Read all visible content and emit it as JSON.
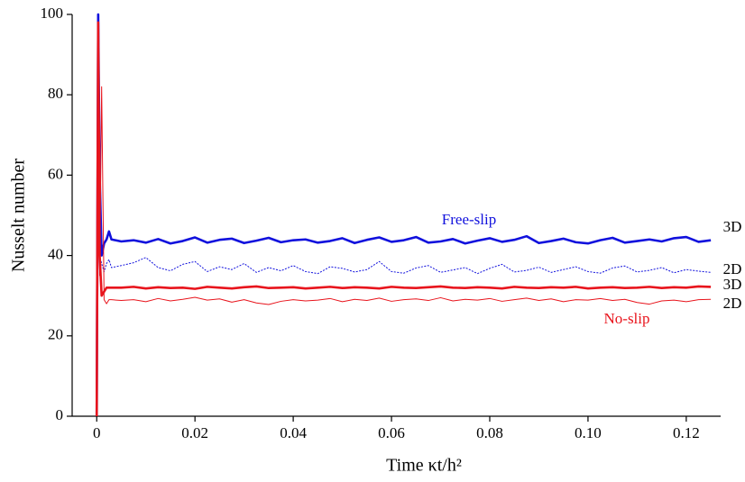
{
  "chart_data": {
    "type": "line",
    "xlabel": "Time κt/h²",
    "ylabel": "Nusselt number",
    "annotations": [
      "Free-slip",
      "No-slip",
      "3D",
      "2D",
      "3D",
      "2D"
    ],
    "xlim": [
      -0.005,
      0.127
    ],
    "ylim": [
      0,
      100
    ],
    "xticks": [
      0,
      0.02,
      0.04,
      0.06,
      0.08,
      {
        "value": 0.1,
        "label": "0.10"
      },
      0.12
    ],
    "yticks": [
      0,
      20,
      40,
      60,
      80,
      100
    ],
    "x": [
      0,
      0.0003,
      0.0006,
      0.001,
      0.0015,
      0.002,
      0.0025,
      0.003,
      0.005,
      0.0075,
      0.01,
      0.0125,
      0.015,
      0.0175,
      0.02,
      0.0225,
      0.025,
      0.0275,
      0.03,
      0.0325,
      0.035,
      0.0375,
      0.04,
      0.0425,
      0.045,
      0.0475,
      0.05,
      0.0525,
      0.055,
      0.0575,
      0.06,
      0.0625,
      0.065,
      0.0675,
      0.07,
      0.0725,
      0.075,
      0.0775,
      0.08,
      0.0825,
      0.085,
      0.0875,
      0.09,
      0.0925,
      0.095,
      0.0975,
      0.1,
      0.1025,
      0.105,
      0.1075,
      0.11,
      0.1125,
      0.115,
      0.1175,
      0.12,
      0.1225,
      0.125
    ],
    "series": [
      {
        "name": "Free-slip 3D",
        "color": "#1111dd",
        "values": [
          0,
          100,
          60,
          40,
          43,
          44,
          46,
          44,
          43.5,
          43.8,
          43.2,
          44.1,
          43.0,
          43.6,
          44.5,
          43.2,
          43.9,
          44.2,
          43.1,
          43.7,
          44.4,
          43.3,
          43.8,
          44.0,
          43.2,
          43.6,
          44.3,
          43.1,
          43.9,
          44.5,
          43.4,
          43.8,
          44.6,
          43.2,
          43.5,
          44.1,
          43.0,
          43.7,
          44.3,
          43.4,
          43.9,
          44.8,
          43.1,
          43.6,
          44.2,
          43.3,
          43.0,
          43.8,
          44.4,
          43.2,
          43.6,
          44.0,
          43.5,
          44.3,
          44.6,
          43.4,
          43.8
        ]
      },
      {
        "name": "Free-slip 2D",
        "color": "#1111dd",
        "values": [
          0,
          95,
          40,
          38,
          36,
          38,
          39,
          37,
          37.5,
          38.2,
          39.5,
          37.0,
          36.2,
          37.8,
          38.5,
          36.0,
          37.2,
          36.5,
          38.0,
          35.8,
          37.0,
          36.2,
          37.5,
          36.0,
          35.5,
          37.2,
          36.8,
          35.9,
          36.5,
          38.5,
          36.0,
          35.6,
          36.9,
          37.5,
          35.8,
          36.4,
          37.0,
          35.5,
          36.8,
          37.8,
          35.9,
          36.3,
          37.1,
          35.8,
          36.5,
          37.2,
          36.0,
          35.6,
          36.9,
          37.4,
          35.9,
          36.3,
          37.0,
          35.7,
          36.5,
          36.1,
          35.8
        ]
      },
      {
        "name": "No-slip 3D",
        "color": "#e8141c",
        "values": [
          0,
          98,
          40,
          30,
          31,
          32,
          32,
          32,
          32.0,
          32.2,
          31.8,
          32.1,
          31.9,
          32.0,
          31.7,
          32.2,
          32.0,
          31.8,
          32.1,
          32.3,
          31.9,
          32.0,
          32.1,
          31.8,
          32.0,
          32.2,
          31.9,
          32.1,
          32.0,
          31.8,
          32.2,
          32.0,
          31.9,
          32.1,
          32.3,
          32.0,
          31.9,
          32.1,
          32.0,
          31.8,
          32.2,
          32.0,
          31.9,
          32.1,
          32.0,
          32.2,
          31.8,
          32.0,
          32.1,
          31.9,
          32.0,
          32.2,
          31.9,
          32.1,
          32.0,
          32.3,
          32.2
        ]
      },
      {
        "name": "No-slip 2D",
        "color": "#e8141c",
        "values": [
          0,
          85,
          35,
          82,
          29,
          28,
          29,
          29,
          28.8,
          29.0,
          28.5,
          29.3,
          28.7,
          29.1,
          29.6,
          28.9,
          29.2,
          28.4,
          29.0,
          28.2,
          27.8,
          28.6,
          29.0,
          28.7,
          28.9,
          29.3,
          28.5,
          29.1,
          28.8,
          29.4,
          28.6,
          29.0,
          29.2,
          28.8,
          29.5,
          28.7,
          29.1,
          28.9,
          29.3,
          28.6,
          29.0,
          29.4,
          28.8,
          29.2,
          28.5,
          29.0,
          28.9,
          29.3,
          28.8,
          29.1,
          28.3,
          27.9,
          28.7,
          28.9,
          28.5,
          29.0,
          29.1
        ]
      }
    ]
  }
}
